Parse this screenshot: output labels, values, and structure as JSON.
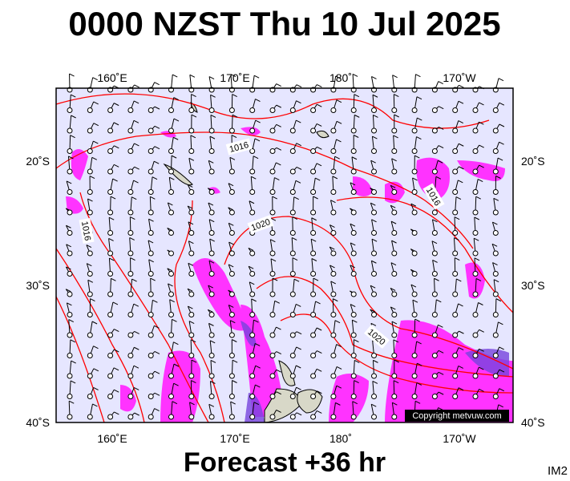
{
  "title": "0000 NZST Thu 10 Jul 2025",
  "top_labels": [
    "160˚E",
    "170˚E",
    "180˚",
    "170˚W"
  ],
  "bottom_labels": [
    "160˚E",
    "170˚E",
    "180˚",
    "170˚W"
  ],
  "left_labels": [
    "20˚S",
    "30˚S",
    "40˚S"
  ],
  "right_labels": [
    "20˚S",
    "30˚S",
    "40˚S"
  ],
  "isobar_labels": [
    "1016",
    "1016",
    "1016",
    "1020",
    "1020"
  ],
  "copyright": "Copyright metvuw.com",
  "footer": "Forecast +36 hr",
  "code": "IM2"
}
